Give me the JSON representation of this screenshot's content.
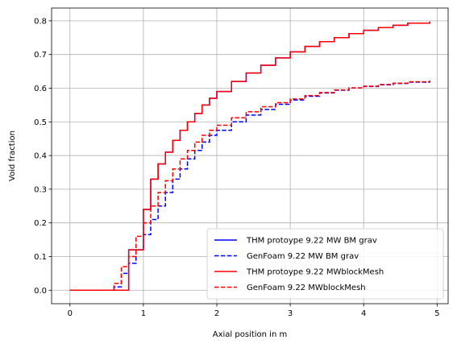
{
  "chart_data": {
    "type": "line",
    "title": "",
    "xlabel": "Axial position in m",
    "ylabel": "Void fraction",
    "xlim": [
      -0.25,
      5.15
    ],
    "ylim": [
      -0.04,
      0.838
    ],
    "xticks": [
      0,
      1,
      2,
      3,
      4,
      5
    ],
    "xtick_labels": [
      "0",
      "1",
      "2",
      "3",
      "4",
      "5"
    ],
    "yticks": [
      0.0,
      0.1,
      0.2,
      0.3,
      0.4,
      0.5,
      0.6,
      0.7,
      0.8
    ],
    "ytick_labels": [
      "0.0",
      "0.1",
      "0.2",
      "0.3",
      "0.4",
      "0.5",
      "0.6",
      "0.7",
      "0.8"
    ],
    "grid": true,
    "legend_position": "lower-right",
    "step": true,
    "x": [
      0.0,
      0.6,
      0.7,
      0.8,
      0.9,
      1.0,
      1.1,
      1.2,
      1.3,
      1.4,
      1.5,
      1.6,
      1.7,
      1.8,
      1.9,
      2.0,
      2.2,
      2.4,
      2.6,
      2.8,
      3.0,
      3.2,
      3.4,
      3.6,
      3.8,
      4.0,
      4.2,
      4.4,
      4.6,
      4.9
    ],
    "series": [
      {
        "name": "THM protoype 9.22 MW BM grav",
        "color": "#0000ff",
        "linestyle": "solid",
        "values": [
          0.0,
          0.0,
          0.0,
          0.12,
          0.12,
          0.24,
          0.33,
          0.375,
          0.41,
          0.445,
          0.475,
          0.5,
          0.525,
          0.55,
          0.57,
          0.59,
          0.62,
          0.645,
          0.668,
          0.69,
          0.708,
          0.724,
          0.738,
          0.75,
          0.762,
          0.772,
          0.78,
          0.787,
          0.793,
          0.798
        ]
      },
      {
        "name": "GenFoam 9.22 MW BM grav",
        "color": "#0000ff",
        "linestyle": "dashed",
        "values": [
          0.0,
          0.01,
          0.05,
          0.08,
          0.12,
          0.165,
          0.21,
          0.25,
          0.29,
          0.33,
          0.36,
          0.39,
          0.415,
          0.44,
          0.46,
          0.475,
          0.5,
          0.52,
          0.537,
          0.552,
          0.565,
          0.576,
          0.586,
          0.594,
          0.601,
          0.605,
          0.61,
          0.614,
          0.618,
          0.622
        ]
      },
      {
        "name": "THM protoype 9.22 MWblockMesh",
        "color": "#ff0000",
        "linestyle": "solid",
        "values": [
          0.0,
          0.0,
          0.0,
          0.12,
          0.12,
          0.24,
          0.33,
          0.375,
          0.41,
          0.445,
          0.475,
          0.5,
          0.525,
          0.55,
          0.57,
          0.59,
          0.62,
          0.645,
          0.668,
          0.69,
          0.708,
          0.724,
          0.738,
          0.75,
          0.762,
          0.772,
          0.78,
          0.787,
          0.793,
          0.798
        ]
      },
      {
        "name": "GenFoam 9.22 MWblockMesh",
        "color": "#ff0000",
        "linestyle": "dashed",
        "values": [
          0.0,
          0.02,
          0.07,
          0.1,
          0.16,
          0.2,
          0.25,
          0.29,
          0.325,
          0.36,
          0.39,
          0.415,
          0.44,
          0.46,
          0.475,
          0.49,
          0.512,
          0.53,
          0.545,
          0.557,
          0.568,
          0.578,
          0.587,
          0.595,
          0.601,
          0.606,
          0.611,
          0.615,
          0.619,
          0.623
        ]
      }
    ]
  }
}
